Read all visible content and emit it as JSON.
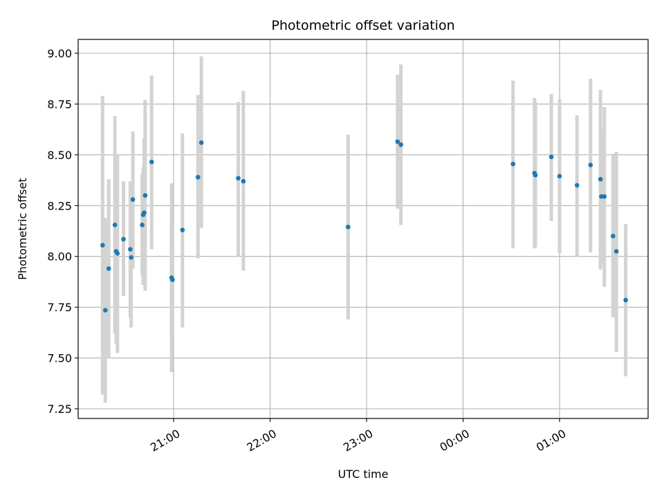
{
  "chart_data": {
    "type": "scatter",
    "title": "Photometric offset variation",
    "xlabel": "UTC time",
    "ylabel": "Photometric offset",
    "x_ticks": [
      "21:00",
      "22:00",
      "23:00",
      "00:00",
      "01:00"
    ],
    "y_ticks": [
      "7.25",
      "7.50",
      "7.75",
      "8.00",
      "8.25",
      "8.50",
      "8.75",
      "9.00"
    ],
    "grid": true,
    "series": [
      {
        "marker_color": "#1f77b4",
        "errorbar_color": "#d3d3d3",
        "points": [
          {
            "x": "20:15:50",
            "y": 8.055,
            "ylo": 7.32,
            "yhi": 8.79
          },
          {
            "x": "20:17:32",
            "y": 7.735,
            "ylo": 7.28,
            "yhi": 8.19
          },
          {
            "x": "20:19:38",
            "y": 7.94,
            "ylo": 7.5,
            "yhi": 8.38
          },
          {
            "x": "20:23:29",
            "y": 8.155,
            "ylo": 7.62,
            "yhi": 8.69
          },
          {
            "x": "20:24:15",
            "y": 8.025,
            "ylo": 7.57,
            "yhi": 8.48
          },
          {
            "x": "20:25:06",
            "y": 8.015,
            "ylo": 7.525,
            "yhi": 8.505
          },
          {
            "x": "20:28:50",
            "y": 8.085,
            "ylo": 7.805,
            "yhi": 8.37
          },
          {
            "x": "20:33:03",
            "y": 8.035,
            "ylo": 7.7,
            "yhi": 8.37
          },
          {
            "x": "20:33:37",
            "y": 7.995,
            "ylo": 7.65,
            "yhi": 8.34
          },
          {
            "x": "20:34:40",
            "y": 8.28,
            "ylo": 7.94,
            "yhi": 8.615
          },
          {
            "x": "20:40:29",
            "y": 8.155,
            "ylo": 7.905,
            "yhi": 8.405
          },
          {
            "x": "20:41:05",
            "y": 8.205,
            "ylo": 7.86,
            "yhi": 8.44
          },
          {
            "x": "20:41:40",
            "y": 8.215,
            "ylo": 7.88,
            "yhi": 8.58
          },
          {
            "x": "20:42:18",
            "y": 8.3,
            "ylo": 7.83,
            "yhi": 8.77
          },
          {
            "x": "20:46:20",
            "y": 8.465,
            "ylo": 8.035,
            "yhi": 8.89
          },
          {
            "x": "20:58:43",
            "y": 7.895,
            "ylo": 7.43,
            "yhi": 8.36
          },
          {
            "x": "20:59:19",
            "y": 7.885,
            "ylo": 7.61,
            "yhi": 8.16
          },
          {
            "x": "21:05:30",
            "y": 8.13,
            "ylo": 7.65,
            "yhi": 8.605
          },
          {
            "x": "21:15:09",
            "y": 8.39,
            "ylo": 7.99,
            "yhi": 8.795
          },
          {
            "x": "21:17:16",
            "y": 8.56,
            "ylo": 8.14,
            "yhi": 8.985
          },
          {
            "x": "21:40:12",
            "y": 8.385,
            "ylo": 8.0,
            "yhi": 8.76
          },
          {
            "x": "21:43:22",
            "y": 8.37,
            "ylo": 7.93,
            "yhi": 8.815
          },
          {
            "x": "22:48:30",
            "y": 8.145,
            "ylo": 7.69,
            "yhi": 8.6
          },
          {
            "x": "23:19:16",
            "y": 8.565,
            "ylo": 8.235,
            "yhi": 8.895
          },
          {
            "x": "23:21:21",
            "y": 8.55,
            "ylo": 8.155,
            "yhi": 8.945
          },
          {
            "x": "00:31:03",
            "y": 8.455,
            "ylo": 8.04,
            "yhi": 8.865
          },
          {
            "x": "00:44:24",
            "y": 8.41,
            "ylo": 8.04,
            "yhi": 8.78
          },
          {
            "x": "00:44:59",
            "y": 8.4,
            "ylo": 8.045,
            "yhi": 8.76
          },
          {
            "x": "00:54:53",
            "y": 8.49,
            "ylo": 8.175,
            "yhi": 8.8
          },
          {
            "x": "00:59:59",
            "y": 8.395,
            "ylo": 8.015,
            "yhi": 8.775
          },
          {
            "x": "01:10:51",
            "y": 8.35,
            "ylo": 8.0,
            "yhi": 8.695
          },
          {
            "x": "01:19:16",
            "y": 8.45,
            "ylo": 8.02,
            "yhi": 8.875
          },
          {
            "x": "01:25:26",
            "y": 8.38,
            "ylo": 7.935,
            "yhi": 8.82
          },
          {
            "x": "01:26:01",
            "y": 8.295,
            "ylo": 7.96,
            "yhi": 8.63
          },
          {
            "x": "01:27:52",
            "y": 8.295,
            "ylo": 7.85,
            "yhi": 8.735
          },
          {
            "x": "01:33:15",
            "y": 8.1,
            "ylo": 7.7,
            "yhi": 8.505
          },
          {
            "x": "01:35:20",
            "y": 8.025,
            "ylo": 7.53,
            "yhi": 8.515
          },
          {
            "x": "01:41:07",
            "y": 7.785,
            "ylo": 7.41,
            "yhi": 8.16
          }
        ]
      }
    ]
  }
}
